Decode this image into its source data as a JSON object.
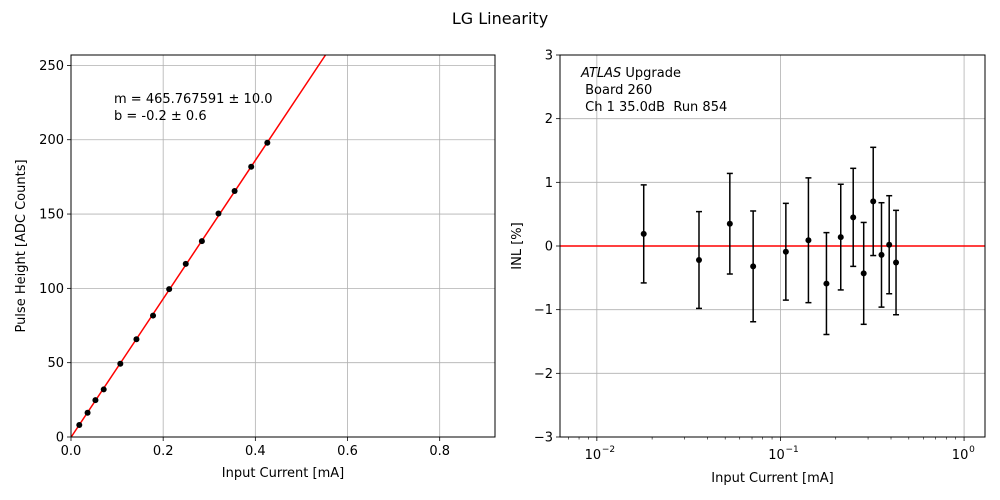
{
  "figure": {
    "title": "LG Linearity"
  },
  "chart_data": [
    {
      "type": "scatter",
      "xlabel": "Input Current [mA]",
      "ylabel": "Pulse Height [ADC Counts]",
      "xlim": [
        0,
        0.92
      ],
      "ylim": [
        0,
        257
      ],
      "x_ticks": [
        0.0,
        0.2,
        0.4,
        0.6,
        0.8
      ],
      "y_ticks": [
        0,
        50,
        100,
        150,
        200,
        250
      ],
      "grid": true,
      "series": [
        {
          "x": [
            0.018,
            0.036,
            0.053,
            0.071,
            0.107,
            0.142,
            0.178,
            0.213,
            0.249,
            0.284,
            0.32,
            0.355,
            0.391,
            0.426
          ],
          "y": [
            8.1,
            16.3,
            24.8,
            32.0,
            49.3,
            65.8,
            81.7,
            99.5,
            116.5,
            131.8,
            150.4,
            165.5,
            181.8,
            198.0
          ],
          "color": "#000000"
        }
      ],
      "fit_line": {
        "slope": 465.767591,
        "intercept": -0.2,
        "color": "#ff0000"
      },
      "annotation": [
        "m = 465.767591 ± 10.0",
        "b = -0.2 ± 0.6"
      ]
    },
    {
      "type": "scatter",
      "xlabel": "Input Current [mA]",
      "ylabel": "INL [%]",
      "xscale": "log",
      "xlim": [
        0.0063,
        1.3
      ],
      "ylim": [
        -3,
        3
      ],
      "x_ticks": [
        0.01,
        0.1,
        1
      ],
      "x_tick_labels": [
        [
          "10",
          "−2"
        ],
        [
          "10",
          "−1"
        ],
        [
          "10",
          "0"
        ]
      ],
      "y_ticks": [
        -3,
        -2,
        -1,
        0,
        1,
        2,
        3
      ],
      "y_tick_labels": [
        "−3",
        "−2",
        "−1",
        "0",
        "1",
        "2",
        "3"
      ],
      "grid": true,
      "series": [
        {
          "x": [
            0.018,
            0.036,
            0.053,
            0.071,
            0.107,
            0.142,
            0.178,
            0.213,
            0.249,
            0.284,
            0.32,
            0.355,
            0.391,
            0.426
          ],
          "y": [
            0.19,
            -0.22,
            0.35,
            -0.32,
            -0.09,
            0.09,
            -0.59,
            0.14,
            0.45,
            -0.43,
            0.7,
            -0.14,
            0.02,
            -0.26
          ],
          "yerr": [
            0.77,
            0.76,
            0.79,
            0.87,
            0.76,
            0.98,
            0.8,
            0.83,
            0.77,
            0.8,
            0.85,
            0.82,
            0.77,
            0.82
          ],
          "color": "#000000"
        }
      ],
      "reference_line": {
        "y": 0,
        "color": "#ff0000"
      },
      "annotation": {
        "italic": "ATLAS",
        "rest": " Upgrade",
        "lines": [
          " Board 260",
          " Ch 1 35.0dB  Run 854"
        ]
      }
    }
  ]
}
